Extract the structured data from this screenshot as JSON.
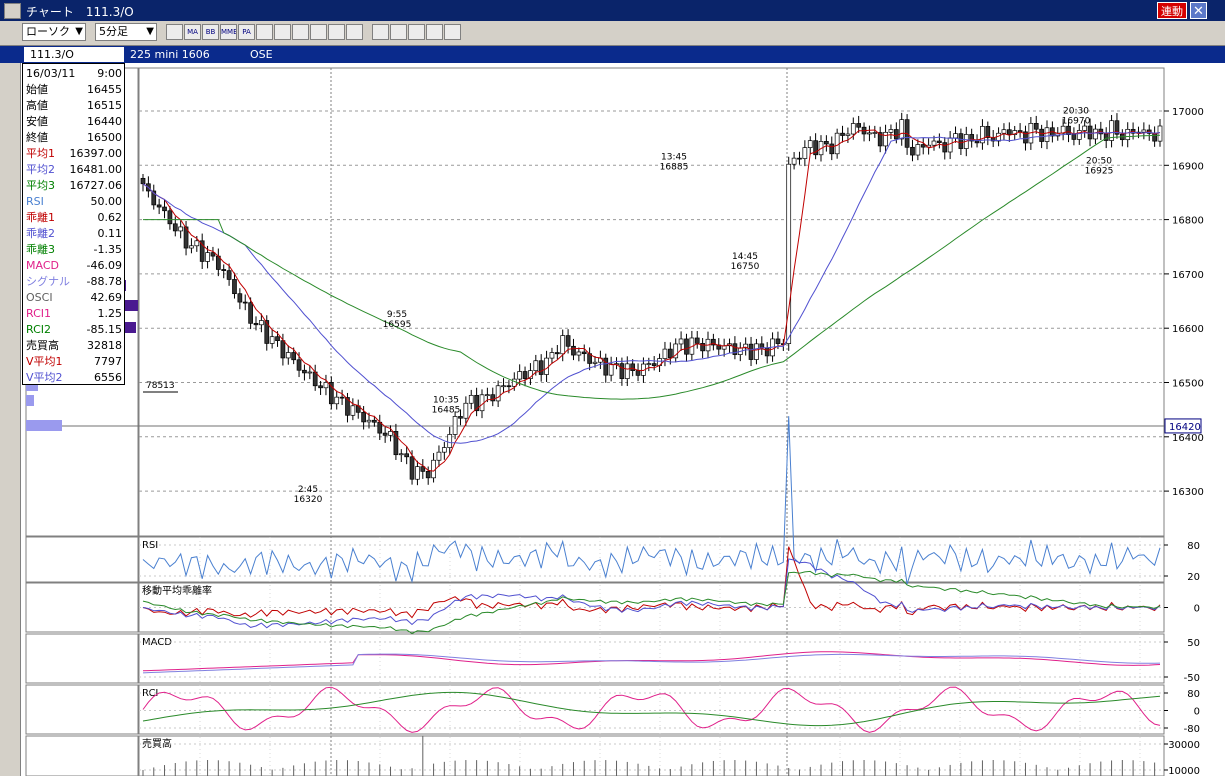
{
  "window": {
    "title": "チャート　111.3/O",
    "link_label": "連動",
    "close_glyph": "✕"
  },
  "toolbar": {
    "chart_type": "ローソク",
    "interval": "5分足",
    "buttons": [
      {
        "icon": "chart-settings-icon",
        "label": ""
      },
      {
        "icon": "ma-icon",
        "label": "MA"
      },
      {
        "icon": "bb-icon",
        "label": "BB"
      },
      {
        "icon": "mme-icon",
        "label": "MME"
      },
      {
        "icon": "pa-icon",
        "label": "PA"
      },
      {
        "icon": "line-chart-icon",
        "label": ""
      },
      {
        "icon": "pattern-icon",
        "label": ""
      },
      {
        "icon": "crosshair-icon",
        "label": ""
      },
      {
        "icon": "zoom-icon",
        "label": ""
      },
      {
        "icon": "calculator-icon",
        "label": ""
      },
      {
        "icon": "bar-icon",
        "label": ""
      },
      {
        "icon": "pen-icon",
        "label": ""
      },
      {
        "icon": "pointer-icon",
        "label": ""
      },
      {
        "icon": "eraser-icon",
        "label": ""
      },
      {
        "icon": "search-icon",
        "label": ""
      },
      {
        "icon": "tools-icon",
        "label": ""
      }
    ]
  },
  "info": {
    "symbol": "111.3/O",
    "contract": "225 mini 1606",
    "exchange": "OSE"
  },
  "datapanel": {
    "date": "16/03/11",
    "time": "9:00",
    "rows": [
      {
        "label": "始値",
        "value": "16455",
        "color": "#000000"
      },
      {
        "label": "高値",
        "value": "16515",
        "color": "#000000"
      },
      {
        "label": "安値",
        "value": "16440",
        "color": "#000000"
      },
      {
        "label": "終値",
        "value": "16500",
        "color": "#000000"
      },
      {
        "label": "平均1",
        "value": "16397.00",
        "color": "#c00000"
      },
      {
        "label": "平均2",
        "value": "16481.00",
        "color": "#5050d0"
      },
      {
        "label": "平均3",
        "value": "16727.06",
        "color": "#008000"
      },
      {
        "label": "RSI",
        "value": "50.00",
        "color": "#4a80d0"
      },
      {
        "label": "乖離1",
        "value": "0.62",
        "color": "#c00000"
      },
      {
        "label": "乖離2",
        "value": "0.11",
        "color": "#5050d0"
      },
      {
        "label": "乖離3",
        "value": "-1.35",
        "color": "#008000"
      },
      {
        "label": "MACD",
        "value": "-46.09",
        "color": "#e0208a"
      },
      {
        "label": "シグナル",
        "value": "-88.78",
        "color": "#8080e0"
      },
      {
        "label": "OSCI",
        "value": "42.69",
        "color": "#606060"
      },
      {
        "label": "RCI1",
        "value": "1.25",
        "color": "#e0208a"
      },
      {
        "label": "RCI2",
        "value": "-85.15",
        "color": "#008000"
      },
      {
        "label": "売買高",
        "value": "32818",
        "color": "#000000"
      },
      {
        "label": "V平均1",
        "value": "7797",
        "color": "#c00000"
      },
      {
        "label": "V平均2",
        "value": "6556",
        "color": "#5050d0"
      }
    ]
  },
  "main_chart": {
    "price_ticks": [
      "17000",
      "16900",
      "16800",
      "16700",
      "16600",
      "16500",
      "16400",
      "16300"
    ],
    "current_price": "16420",
    "volume_profile_label": "78513",
    "annotations": [
      {
        "time": "2:45",
        "price": "16320",
        "pos": "below"
      },
      {
        "time": "9:55",
        "price": "16595",
        "pos": "above"
      },
      {
        "time": "10:35",
        "price": "16485",
        "pos": "below"
      },
      {
        "time": "13:45",
        "price": "16885",
        "pos": "above"
      },
      {
        "time": "14:45",
        "price": "16750",
        "pos": "below"
      },
      {
        "time": "20:30",
        "price": "16970",
        "pos": "above"
      },
      {
        "time": "20:50",
        "price": "16925",
        "pos": "below"
      }
    ]
  },
  "panels": {
    "rsi": {
      "title": "RSI",
      "ticks": [
        "80",
        "20"
      ]
    },
    "deviation": {
      "title": "移動平均乖離率",
      "ticks": [
        "0"
      ]
    },
    "macd": {
      "title": "MACD",
      "ticks": [
        "50",
        "-50"
      ]
    },
    "rci": {
      "title": "RCI",
      "ticks": [
        "80",
        "0",
        "-80"
      ]
    },
    "volume": {
      "title": "売買高",
      "ticks": [
        "30000",
        "10000"
      ]
    }
  },
  "colors": {
    "candle_up": "#ffffff",
    "candle_down": "#333333",
    "ma1": "#c00000",
    "ma2": "#5050d0",
    "ma3": "#2a8a2a",
    "rsi": "#4a80d0",
    "macd": "#e0208a",
    "signal": "#8080e0",
    "rci1": "#e0208a",
    "rci2": "#2a8a2a",
    "volume_profile": "#9a9aee",
    "volume_profile_max": "#4a1a90",
    "titlebar": "#0a246a"
  }
}
